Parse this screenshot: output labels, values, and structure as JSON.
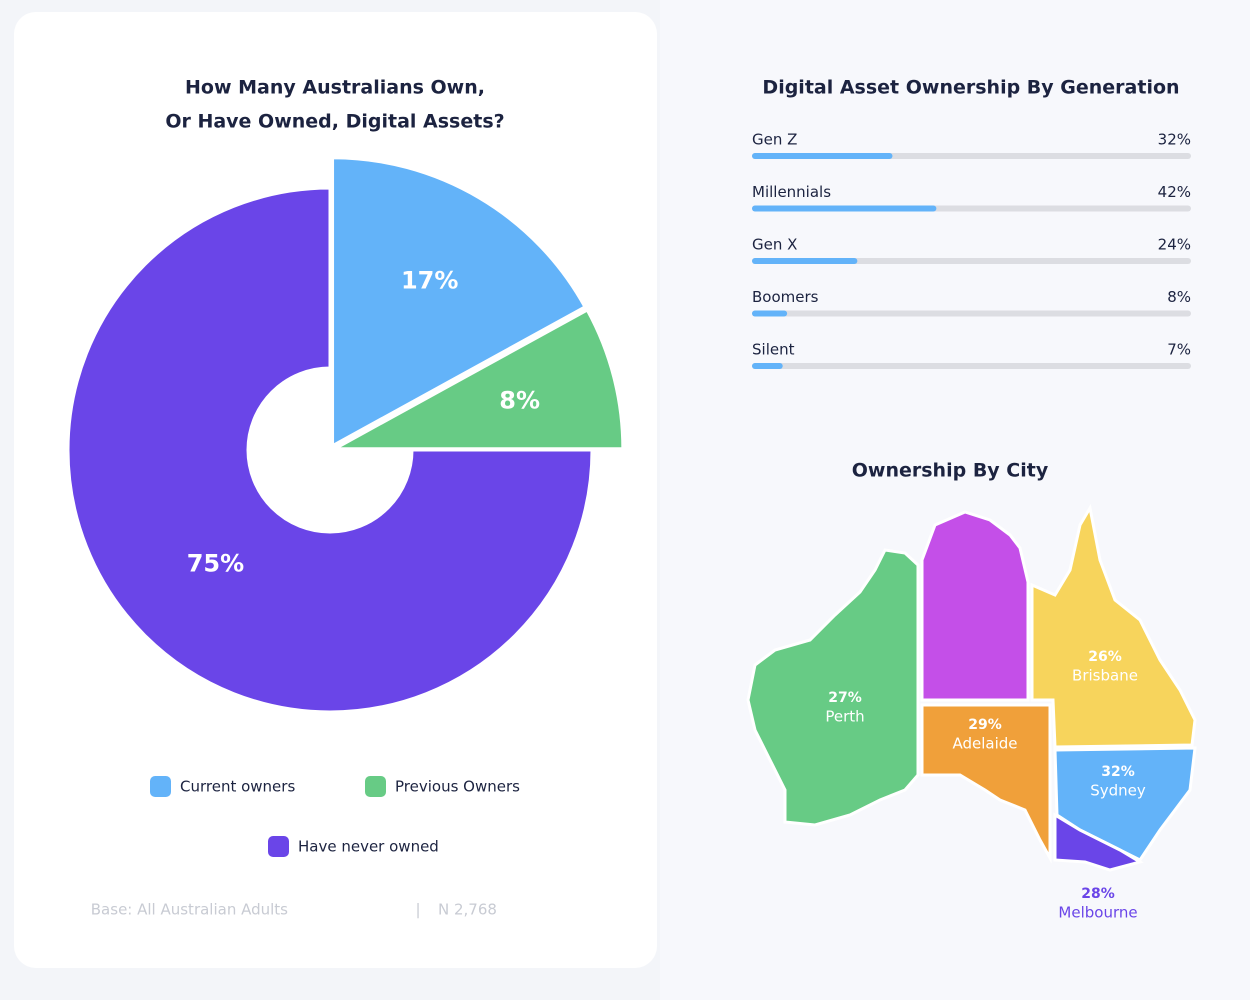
{
  "chart_data": [
    {
      "type": "pie",
      "title": [
        "How Many Australians Own,",
        "Or Have Owned, Digital Assets?"
      ],
      "categories": [
        "Current owners",
        "Previous Owners",
        "Have never owned"
      ],
      "values": [
        17,
        8,
        75
      ],
      "value_labels": [
        "17%",
        "8%",
        "75%"
      ],
      "colors": [
        "#63b3f9",
        "#67cb85",
        "#6a45e8"
      ],
      "base": "Base: All Australian Adults",
      "sample": "N 2,768"
    },
    {
      "type": "bar",
      "title": "Digital Asset Ownership By Generation",
      "categories": [
        "Gen Z",
        "Millennials",
        "Gen X",
        "Boomers",
        "Silent"
      ],
      "values": [
        32,
        42,
        24,
        8,
        7
      ],
      "value_labels": [
        "32%",
        "42%",
        "24%",
        "8%",
        "7%"
      ],
      "xlim": [
        0,
        100
      ],
      "color": "#63b3f9"
    },
    {
      "type": "map",
      "title": "Ownership By City",
      "categories": [
        "Perth",
        "Adelaide",
        "Brisbane",
        "Sydney",
        "Melbourne"
      ],
      "values": [
        27,
        29,
        26,
        32,
        28
      ],
      "value_labels": [
        "27%",
        "29%",
        "26%",
        "32%",
        "28%"
      ],
      "colors": [
        "#67cb85",
        "#f0a03a",
        "#f7d45c",
        "#63b3f9",
        "#6a45e8"
      ]
    }
  ]
}
